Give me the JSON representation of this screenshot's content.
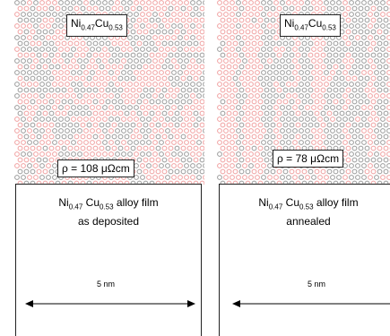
{
  "panels": [
    {
      "id": "as-deposited",
      "composition": {
        "element1": "Ni",
        "sub1": "0.47",
        "element2": "Cu",
        "sub2": "0.53"
      },
      "resistivity": "ρ = 108 μΩcm",
      "film_label": {
        "element1": "Ni",
        "sub1": "0.47",
        "element2": "Cu",
        "sub2": "0.53",
        "suffix": "alloy film",
        "line2": "as deposited"
      },
      "scale": "5 nm",
      "ordering": "random"
    },
    {
      "id": "annealed",
      "composition": {
        "element1": "Ni",
        "sub1": "0.47",
        "element2": "Cu",
        "sub2": "0.53"
      },
      "resistivity": "ρ = 78 μΩcm",
      "film_label": {
        "element1": "Ni",
        "sub1": "0.47",
        "element2": "Cu",
        "sub2": "0.53",
        "suffix": "alloy film",
        "line2": "annealed"
      },
      "scale": "5 nm",
      "ordering": "clustered"
    }
  ],
  "colors": {
    "ni_atom": "#9a9a9a",
    "cu_atom": "#f0a0a0",
    "frame": "#222222"
  }
}
